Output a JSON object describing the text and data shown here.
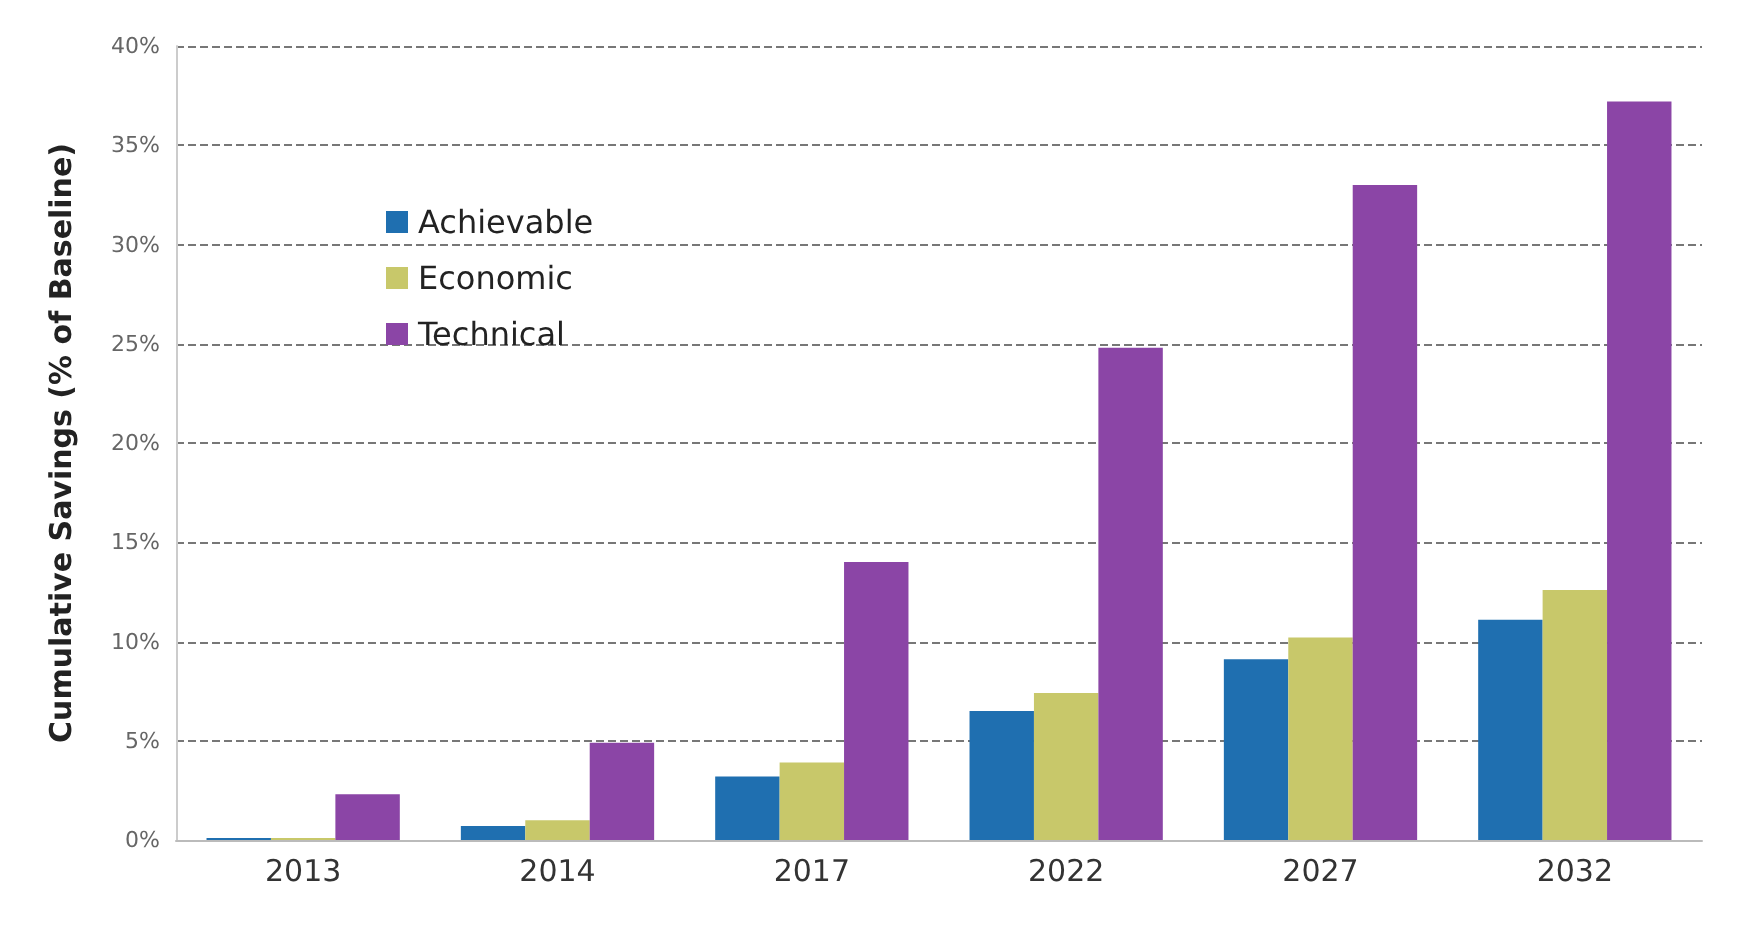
{
  "chart_data": {
    "type": "bar",
    "ylabel": "Cumulative Savings (% of Baseline)",
    "categories": [
      "2013",
      "2014",
      "2017",
      "2022",
      "2027",
      "2032"
    ],
    "series": [
      {
        "name": "Achievable",
        "color": "#1f6fb0",
        "values": [
          0.1,
          0.7,
          3.2,
          6.5,
          9.1,
          11.1
        ]
      },
      {
        "name": "Economic",
        "color": "#c8c86a",
        "values": [
          0.1,
          1.0,
          3.9,
          7.4,
          10.2,
          12.6
        ]
      },
      {
        "name": "Technical",
        "color": "#8b45a6",
        "values": [
          2.3,
          4.9,
          14.0,
          24.8,
          33.0,
          37.2
        ]
      }
    ],
    "ylim": [
      0,
      40
    ],
    "yticks": [
      {
        "value": 0,
        "label": "0%"
      },
      {
        "value": 5,
        "label": "5%"
      },
      {
        "value": 10,
        "label": "10%"
      },
      {
        "value": 15,
        "label": "15%"
      },
      {
        "value": 20,
        "label": "20%"
      },
      {
        "value": 25,
        "label": "25%"
      },
      {
        "value": 30,
        "label": "30%"
      },
      {
        "value": 35,
        "label": "35%"
      },
      {
        "value": 40,
        "label": "40%"
      }
    ],
    "grid": "y",
    "legend": "top left",
    "line_style": "dashed"
  }
}
